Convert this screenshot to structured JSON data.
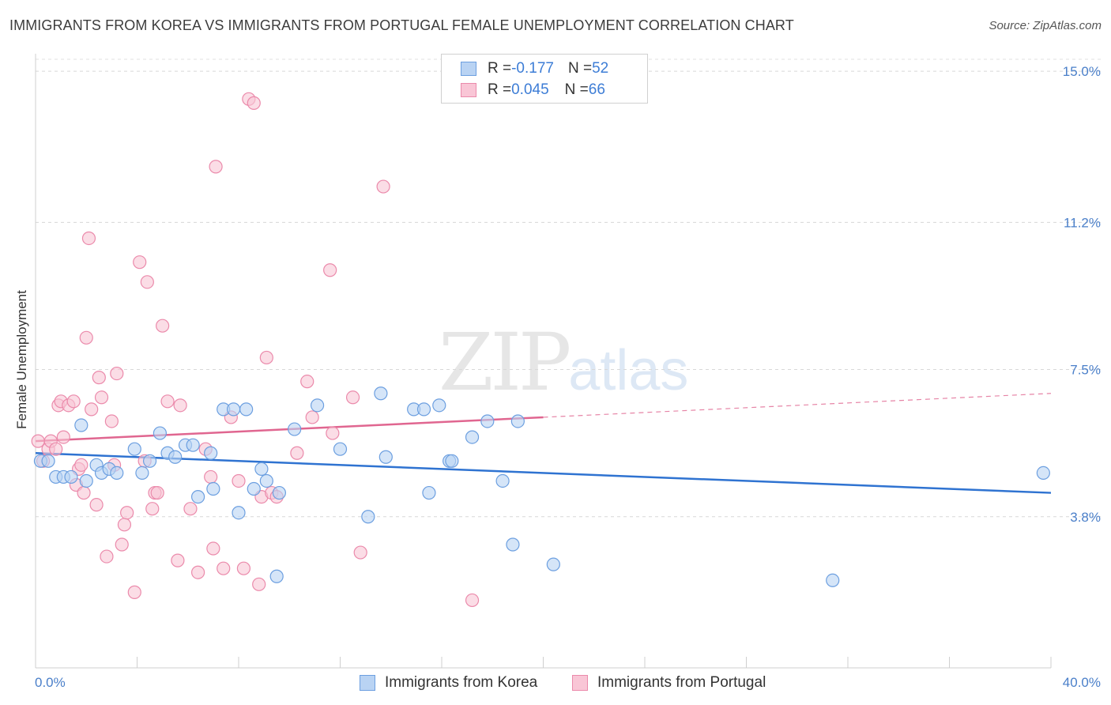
{
  "header": {
    "title": "IMMIGRANTS FROM KOREA VS IMMIGRANTS FROM PORTUGAL FEMALE UNEMPLOYMENT CORRELATION CHART",
    "source": "Source: ZipAtlas.com"
  },
  "watermark": {
    "zip": "ZIP",
    "atlas": "atlas"
  },
  "legend": {
    "korea": {
      "r_label": "R = ",
      "r_value": "-0.177",
      "n_label": "N = ",
      "n_value": "52"
    },
    "portugal": {
      "r_label": "R = ",
      "r_value": "0.045",
      "n_label": "N = ",
      "n_value": "66"
    }
  },
  "colors": {
    "korea_fill": "#b9d3f3",
    "korea_stroke": "#6c9fe0",
    "korea_line": "#2f73d1",
    "portugal_fill": "#f9c6d6",
    "portugal_stroke": "#eb8aab",
    "portugal_line": "#e06690"
  },
  "chart_data": {
    "type": "scatter",
    "title": "IMMIGRANTS FROM KOREA VS IMMIGRANTS FROM PORTUGAL FEMALE UNEMPLOYMENT CORRELATION CHART",
    "xlabel": "",
    "ylabel": "Female Unemployment",
    "xlim": [
      0,
      40
    ],
    "ylim": [
      0.0,
      15.3
    ],
    "x_tick_labels": [
      "0.0%",
      "40.0%"
    ],
    "y_ticks": [
      3.8,
      7.5,
      11.2,
      15.0
    ],
    "y_tick_labels": [
      "3.8%",
      "7.5%",
      "11.2%",
      "15.0%"
    ],
    "series": [
      {
        "name": "Immigrants from Korea",
        "r": -0.177,
        "n": 52,
        "trend": {
          "x": [
            0,
            40
          ],
          "y": [
            5.4,
            4.4
          ],
          "dashed_from": null
        },
        "points": [
          [
            0.2,
            5.2
          ],
          [
            0.5,
            5.2
          ],
          [
            0.8,
            4.8
          ],
          [
            1.1,
            4.8
          ],
          [
            1.4,
            4.8
          ],
          [
            1.8,
            6.1
          ],
          [
            2.0,
            4.7
          ],
          [
            2.4,
            5.1
          ],
          [
            2.6,
            4.9
          ],
          [
            2.9,
            5.0
          ],
          [
            3.2,
            4.9
          ],
          [
            3.9,
            5.5
          ],
          [
            4.2,
            4.9
          ],
          [
            4.5,
            5.2
          ],
          [
            4.9,
            5.9
          ],
          [
            5.2,
            5.4
          ],
          [
            5.5,
            5.3
          ],
          [
            5.9,
            5.6
          ],
          [
            6.2,
            5.6
          ],
          [
            6.4,
            4.3
          ],
          [
            6.9,
            5.4
          ],
          [
            7.0,
            4.5
          ],
          [
            7.4,
            6.5
          ],
          [
            7.8,
            6.5
          ],
          [
            8.0,
            3.9
          ],
          [
            8.3,
            6.5
          ],
          [
            8.6,
            4.5
          ],
          [
            8.9,
            5.0
          ],
          [
            9.1,
            4.7
          ],
          [
            9.5,
            2.3
          ],
          [
            9.6,
            4.4
          ],
          [
            10.2,
            6.0
          ],
          [
            11.1,
            6.6
          ],
          [
            12.0,
            5.5
          ],
          [
            13.1,
            3.8
          ],
          [
            13.6,
            6.9
          ],
          [
            13.8,
            5.3
          ],
          [
            14.9,
            6.5
          ],
          [
            15.3,
            6.5
          ],
          [
            15.5,
            4.4
          ],
          [
            15.9,
            6.6
          ],
          [
            16.3,
            5.2
          ],
          [
            16.4,
            5.2
          ],
          [
            17.2,
            5.8
          ],
          [
            17.8,
            6.2
          ],
          [
            18.4,
            4.7
          ],
          [
            18.8,
            3.1
          ],
          [
            19.0,
            6.2
          ],
          [
            20.4,
            2.6
          ],
          [
            31.4,
            2.2
          ],
          [
            39.7,
            4.9
          ]
        ]
      },
      {
        "name": "Immigrants from Portugal",
        "r": 0.045,
        "n": 66,
        "trend": {
          "x": [
            0,
            40
          ],
          "y": [
            5.7,
            6.9
          ],
          "dashed_from": 20
        },
        "points": [
          [
            0.1,
            5.7
          ],
          [
            0.3,
            5.2
          ],
          [
            0.5,
            5.5
          ],
          [
            0.6,
            5.7
          ],
          [
            0.8,
            5.5
          ],
          [
            0.9,
            6.6
          ],
          [
            1.0,
            6.7
          ],
          [
            1.1,
            5.8
          ],
          [
            1.3,
            6.6
          ],
          [
            1.5,
            6.7
          ],
          [
            1.6,
            4.6
          ],
          [
            1.7,
            5.0
          ],
          [
            1.8,
            5.1
          ],
          [
            1.9,
            4.4
          ],
          [
            2.0,
            8.3
          ],
          [
            2.1,
            10.8
          ],
          [
            2.2,
            6.5
          ],
          [
            2.4,
            4.1
          ],
          [
            2.5,
            7.3
          ],
          [
            2.6,
            6.8
          ],
          [
            2.8,
            2.8
          ],
          [
            3.0,
            6.2
          ],
          [
            3.1,
            5.1
          ],
          [
            3.2,
            7.4
          ],
          [
            3.4,
            3.1
          ],
          [
            3.5,
            3.6
          ],
          [
            3.6,
            3.9
          ],
          [
            3.9,
            1.9
          ],
          [
            4.1,
            10.2
          ],
          [
            4.3,
            5.2
          ],
          [
            4.4,
            9.7
          ],
          [
            4.6,
            4.0
          ],
          [
            4.7,
            4.4
          ],
          [
            4.8,
            4.4
          ],
          [
            5.0,
            8.6
          ],
          [
            5.2,
            6.7
          ],
          [
            5.6,
            2.7
          ],
          [
            5.7,
            6.6
          ],
          [
            6.1,
            4.0
          ],
          [
            6.4,
            2.4
          ],
          [
            6.7,
            5.5
          ],
          [
            6.9,
            4.8
          ],
          [
            7.0,
            3.0
          ],
          [
            7.1,
            12.6
          ],
          [
            7.4,
            2.5
          ],
          [
            7.7,
            6.3
          ],
          [
            8.0,
            4.7
          ],
          [
            8.2,
            2.5
          ],
          [
            8.4,
            14.3
          ],
          [
            8.6,
            14.2
          ],
          [
            8.8,
            2.1
          ],
          [
            8.9,
            4.3
          ],
          [
            9.1,
            7.8
          ],
          [
            9.3,
            4.4
          ],
          [
            9.5,
            4.3
          ],
          [
            10.3,
            5.4
          ],
          [
            10.7,
            7.2
          ],
          [
            10.9,
            6.3
          ],
          [
            11.6,
            10.0
          ],
          [
            11.7,
            5.9
          ],
          [
            12.5,
            6.8
          ],
          [
            12.8,
            2.9
          ],
          [
            13.7,
            12.1
          ],
          [
            17.2,
            1.7
          ]
        ]
      }
    ]
  },
  "bottom_legend": {
    "korea": "Immigrants from Korea",
    "portugal": "Immigrants from Portugal"
  }
}
